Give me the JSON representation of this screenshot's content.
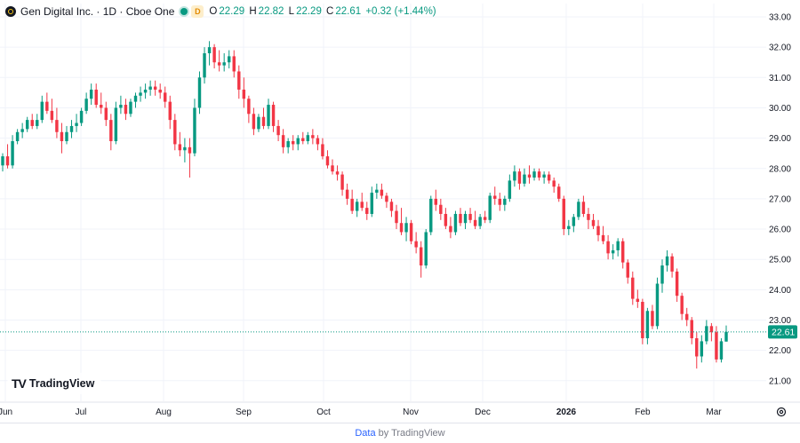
{
  "legend": {
    "symbol_title": "Gen Digital Inc. · 1D · Cboe One",
    "badge": "D",
    "open_key": "O",
    "open": "22.29",
    "high_key": "H",
    "high": "22.82",
    "low_key": "L",
    "low": "22.29",
    "close_key": "C",
    "close": "22.61",
    "change": "+0.32 (+1.44%)"
  },
  "logo_text": "TradingView",
  "footer": {
    "data_label": "Data",
    "by_label": "by TradingView"
  },
  "colors": {
    "up": "#089981",
    "down": "#f23645",
    "grid": "#f0f3fa",
    "text": "#131722"
  },
  "chart_data": {
    "type": "candlestick",
    "x_axis_labels": [
      "Jun",
      "Jul",
      "Aug",
      "Sep",
      "Oct",
      "Nov",
      "Dec",
      "2026",
      "Feb",
      "Mar"
    ],
    "y_ticks": [
      "33.00",
      "32.00",
      "31.00",
      "30.00",
      "29.00",
      "28.00",
      "27.00",
      "26.00",
      "25.00",
      "24.00",
      "23.00",
      "22.00",
      "21.00"
    ],
    "ylim": [
      20.6,
      33.3
    ],
    "last_price": 22.61,
    "last_price_label": "22.61",
    "bars": [
      [
        28.1,
        28.5,
        27.9,
        28.4
      ],
      [
        28.4,
        28.8,
        28.0,
        28.1
      ],
      [
        28.1,
        29.1,
        28.0,
        28.9
      ],
      [
        28.9,
        29.3,
        28.8,
        29.2
      ],
      [
        29.2,
        29.5,
        29.0,
        29.3
      ],
      [
        29.3,
        29.7,
        29.2,
        29.6
      ],
      [
        29.6,
        29.8,
        29.3,
        29.4
      ],
      [
        29.4,
        29.8,
        29.3,
        29.6
      ],
      [
        29.6,
        30.4,
        29.5,
        30.2
      ],
      [
        30.2,
        30.5,
        29.8,
        29.9
      ],
      [
        29.9,
        30.3,
        29.5,
        29.6
      ],
      [
        29.6,
        30.0,
        29.0,
        29.2
      ],
      [
        29.2,
        29.5,
        28.5,
        28.9
      ],
      [
        28.9,
        29.4,
        28.8,
        29.2
      ],
      [
        29.2,
        29.6,
        29.0,
        29.4
      ],
      [
        29.4,
        29.8,
        29.2,
        29.5
      ],
      [
        29.5,
        30.0,
        29.4,
        29.9
      ],
      [
        29.9,
        30.5,
        29.8,
        30.3
      ],
      [
        30.3,
        30.8,
        30.1,
        30.6
      ],
      [
        30.6,
        30.8,
        30.0,
        30.1
      ],
      [
        30.1,
        30.5,
        29.8,
        30.0
      ],
      [
        30.0,
        30.2,
        29.4,
        29.6
      ],
      [
        29.6,
        29.8,
        28.6,
        28.9
      ],
      [
        28.9,
        30.2,
        28.8,
        30.0
      ],
      [
        30.0,
        30.4,
        29.8,
        30.1
      ],
      [
        30.1,
        30.3,
        29.6,
        29.8
      ],
      [
        29.8,
        30.3,
        29.7,
        30.2
      ],
      [
        30.2,
        30.5,
        30.0,
        30.4
      ],
      [
        30.4,
        30.7,
        30.2,
        30.5
      ],
      [
        30.5,
        30.8,
        30.3,
        30.6
      ],
      [
        30.6,
        30.9,
        30.4,
        30.7
      ],
      [
        30.7,
        30.9,
        30.4,
        30.6
      ],
      [
        30.6,
        30.8,
        30.3,
        30.5
      ],
      [
        30.5,
        30.7,
        30.0,
        30.2
      ],
      [
        30.2,
        30.4,
        29.3,
        29.6
      ],
      [
        29.6,
        29.8,
        28.6,
        28.8
      ],
      [
        28.8,
        29.2,
        28.4,
        28.6
      ],
      [
        28.6,
        29.0,
        28.2,
        28.7
      ],
      [
        28.7,
        29.0,
        27.7,
        28.5
      ],
      [
        28.5,
        30.3,
        28.4,
        30.0
      ],
      [
        30.0,
        31.2,
        29.8,
        31.0
      ],
      [
        31.0,
        32.0,
        30.8,
        31.8
      ],
      [
        31.8,
        32.2,
        31.4,
        32.0
      ],
      [
        32.0,
        32.1,
        31.3,
        31.5
      ],
      [
        31.5,
        31.9,
        31.2,
        31.4
      ],
      [
        31.4,
        31.8,
        31.2,
        31.5
      ],
      [
        31.5,
        31.9,
        31.3,
        31.7
      ],
      [
        31.7,
        31.9,
        31.0,
        31.2
      ],
      [
        31.2,
        31.4,
        30.3,
        30.6
      ],
      [
        30.6,
        31.0,
        30.0,
        30.3
      ],
      [
        30.3,
        30.4,
        29.5,
        29.8
      ],
      [
        29.8,
        30.0,
        29.1,
        29.3
      ],
      [
        29.3,
        29.8,
        29.2,
        29.7
      ],
      [
        29.7,
        30.0,
        29.3,
        29.4
      ],
      [
        29.4,
        30.3,
        29.3,
        30.1
      ],
      [
        30.1,
        30.2,
        29.2,
        29.4
      ],
      [
        29.4,
        29.6,
        28.9,
        29.1
      ],
      [
        29.1,
        29.3,
        28.5,
        28.7
      ],
      [
        28.7,
        29.0,
        28.5,
        28.9
      ],
      [
        28.9,
        29.1,
        28.6,
        28.8
      ],
      [
        28.8,
        29.1,
        28.6,
        29.0
      ],
      [
        29.0,
        29.2,
        28.8,
        28.9
      ],
      [
        28.9,
        29.2,
        28.8,
        29.1
      ],
      [
        29.1,
        29.3,
        28.8,
        29.0
      ],
      [
        29.0,
        29.1,
        28.6,
        28.8
      ],
      [
        28.8,
        29.0,
        28.3,
        28.4
      ],
      [
        28.4,
        28.6,
        28.0,
        28.1
      ],
      [
        28.1,
        28.3,
        27.8,
        27.9
      ],
      [
        27.9,
        28.1,
        27.6,
        27.8
      ],
      [
        27.8,
        27.9,
        27.1,
        27.3
      ],
      [
        27.3,
        27.5,
        26.8,
        27.0
      ],
      [
        27.0,
        27.3,
        26.5,
        26.6
      ],
      [
        26.6,
        27.0,
        26.4,
        26.9
      ],
      [
        26.9,
        27.2,
        26.6,
        26.7
      ],
      [
        26.7,
        26.9,
        26.3,
        26.5
      ],
      [
        26.5,
        27.4,
        26.4,
        27.2
      ],
      [
        27.2,
        27.5,
        27.0,
        27.3
      ],
      [
        27.3,
        27.5,
        27.0,
        27.1
      ],
      [
        27.1,
        27.2,
        26.7,
        26.9
      ],
      [
        26.9,
        27.0,
        26.4,
        26.6
      ],
      [
        26.6,
        26.8,
        26.0,
        26.2
      ],
      [
        26.2,
        26.7,
        25.8,
        25.9
      ],
      [
        25.9,
        26.4,
        25.6,
        26.2
      ],
      [
        26.2,
        26.3,
        25.5,
        25.6
      ],
      [
        25.6,
        25.9,
        25.2,
        25.4
      ],
      [
        25.4,
        25.6,
        24.4,
        24.8
      ],
      [
        24.8,
        26.0,
        24.7,
        25.9
      ],
      [
        25.9,
        27.1,
        25.8,
        27.0
      ],
      [
        27.0,
        27.3,
        26.6,
        26.8
      ],
      [
        26.8,
        27.0,
        26.3,
        26.5
      ],
      [
        26.5,
        26.7,
        26.0,
        26.1
      ],
      [
        26.1,
        26.4,
        25.7,
        25.9
      ],
      [
        25.9,
        26.6,
        25.8,
        26.5
      ],
      [
        26.5,
        26.7,
        26.1,
        26.2
      ],
      [
        26.2,
        26.6,
        26.0,
        26.5
      ],
      [
        26.5,
        26.7,
        26.2,
        26.3
      ],
      [
        26.3,
        26.6,
        26.0,
        26.1
      ],
      [
        26.1,
        26.5,
        26.0,
        26.4
      ],
      [
        26.4,
        26.6,
        26.2,
        26.3
      ],
      [
        26.3,
        27.2,
        26.2,
        27.1
      ],
      [
        27.1,
        27.4,
        26.8,
        27.0
      ],
      [
        27.0,
        27.2,
        26.6,
        26.8
      ],
      [
        26.8,
        27.1,
        26.6,
        27.0
      ],
      [
        27.0,
        27.8,
        26.9,
        27.6
      ],
      [
        27.6,
        28.1,
        27.4,
        27.9
      ],
      [
        27.9,
        28.0,
        27.3,
        27.5
      ],
      [
        27.5,
        28.0,
        27.4,
        27.8
      ],
      [
        27.8,
        28.1,
        27.5,
        27.7
      ],
      [
        27.7,
        28.0,
        27.6,
        27.9
      ],
      [
        27.9,
        28.0,
        27.6,
        27.7
      ],
      [
        27.7,
        27.9,
        27.5,
        27.8
      ],
      [
        27.8,
        27.9,
        27.5,
        27.6
      ],
      [
        27.6,
        27.7,
        27.2,
        27.4
      ],
      [
        27.4,
        27.5,
        26.9,
        27.0
      ],
      [
        27.0,
        27.1,
        25.8,
        26.0
      ],
      [
        26.0,
        26.3,
        25.8,
        26.1
      ],
      [
        26.1,
        26.5,
        25.9,
        26.4
      ],
      [
        26.4,
        27.0,
        26.3,
        26.9
      ],
      [
        26.9,
        27.1,
        26.4,
        26.5
      ],
      [
        26.5,
        26.7,
        26.0,
        26.3
      ],
      [
        26.3,
        26.5,
        26.0,
        26.1
      ],
      [
        26.1,
        26.3,
        25.6,
        25.8
      ],
      [
        25.8,
        26.1,
        25.5,
        25.6
      ],
      [
        25.6,
        25.8,
        25.0,
        25.2
      ],
      [
        25.2,
        25.5,
        25.0,
        25.3
      ],
      [
        25.3,
        25.7,
        25.1,
        25.6
      ],
      [
        25.6,
        25.7,
        24.7,
        24.9
      ],
      [
        24.9,
        25.0,
        24.2,
        24.4
      ],
      [
        24.4,
        24.6,
        23.5,
        23.7
      ],
      [
        23.7,
        24.0,
        23.4,
        23.6
      ],
      [
        23.6,
        23.7,
        22.2,
        22.4
      ],
      [
        22.4,
        23.4,
        22.2,
        23.3
      ],
      [
        23.3,
        23.5,
        22.7,
        22.8
      ],
      [
        22.8,
        24.4,
        22.7,
        24.2
      ],
      [
        24.2,
        25.0,
        23.9,
        24.8
      ],
      [
        24.8,
        25.3,
        24.6,
        25.1
      ],
      [
        25.1,
        25.2,
        24.4,
        24.6
      ],
      [
        24.6,
        24.7,
        23.6,
        23.8
      ],
      [
        23.8,
        23.9,
        23.0,
        23.2
      ],
      [
        23.2,
        23.4,
        22.8,
        23.0
      ],
      [
        23.0,
        23.1,
        22.2,
        22.4
      ],
      [
        22.4,
        22.6,
        21.4,
        21.8
      ],
      [
        21.8,
        22.5,
        21.6,
        22.3
      ],
      [
        22.3,
        23.0,
        22.2,
        22.8
      ],
      [
        22.8,
        22.9,
        22.3,
        22.6
      ],
      [
        22.6,
        22.8,
        21.6,
        21.7
      ],
      [
        21.7,
        22.4,
        21.6,
        22.3
      ],
      [
        22.29,
        22.82,
        22.29,
        22.61
      ]
    ]
  }
}
